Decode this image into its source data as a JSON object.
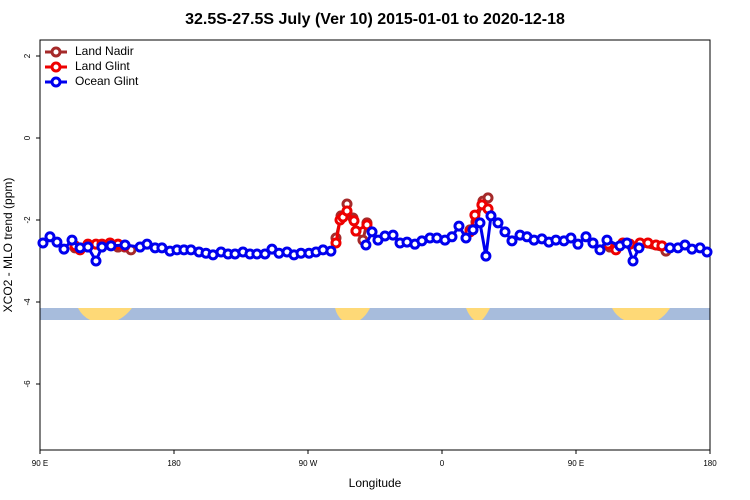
{
  "chart_data": {
    "type": "line",
    "title": "32.5S-27.5S July (Ver 10)   2015-01-01 to 2020-12-18",
    "xlabel": "Longitude",
    "ylabel": "XCO2 - MLO trend (ppm)",
    "xlim": [
      90,
      540
    ],
    "ylim": [
      -7.61,
      2.39
    ],
    "xticks": [
      {
        "value": 90,
        "label": "90 E"
      },
      180,
      {
        "value": 270,
        "label": "90 W"
      },
      {
        "value": 360,
        "label": "0"
      },
      {
        "value": 450,
        "label": "90 E"
      },
      {
        "value": 540,
        "label": "180"
      }
    ],
    "yticks": [
      2,
      0,
      -2,
      -4,
      -6
    ],
    "legend": "top-left",
    "series": [
      {
        "name": "Land Nadir",
        "color": "#a52a2a",
        "x": [
          113.5,
          122.2,
          137.0,
          142.4,
          147.1,
          151.1,
          null,
          288.8,
          292.2,
          296.2,
          300.2,
          302.2,
          306.9,
          309.6,
          null,
          378.8,
          382.8,
          387.5,
          390.9,
          null,
          472.8,
          493.0,
          510.4
        ],
        "values": [
          -2.68,
          -2.63,
          -2.61,
          -2.66,
          -2.66,
          -2.73,
          null,
          -2.44,
          -1.9,
          -1.61,
          -1.95,
          -2.27,
          -2.49,
          -2.07,
          null,
          -2.24,
          -2.05,
          -1.54,
          -1.46,
          null,
          -2.66,
          -2.61,
          -2.76
        ]
      },
      {
        "name": "Land Glint",
        "color": "#ee0000",
        "x": [
          113.5,
          116.9,
          122.2,
          127.6,
          131.6,
          137.0,
          142.4,
          147.1,
          null,
          288.8,
          291.5,
          293.5,
          296.2,
          300.9,
          302.2,
          309.6,
          null,
          378.8,
          382.1,
          386.8,
          390.9,
          null,
          471.5,
          476.8,
          481.5,
          486.2,
          493.0,
          498.3,
          503.7,
          507.7
        ],
        "values": [
          -2.63,
          -2.73,
          -2.59,
          -2.59,
          -2.59,
          -2.56,
          -2.59,
          -2.63,
          null,
          -2.56,
          -2.0,
          -1.93,
          -1.78,
          -2.02,
          -2.27,
          -2.12,
          null,
          -2.29,
          -1.88,
          -1.63,
          -1.73,
          null,
          -2.59,
          -2.73,
          -2.56,
          -2.59,
          -2.56,
          -2.56,
          -2.61,
          -2.63
        ]
      },
      {
        "name": "Ocean Glint",
        "color": "#0000ee",
        "x": [
          92.0,
          96.7,
          101.4,
          106.1,
          111.5,
          116.9,
          122.2,
          127.6,
          131.6,
          137.7,
          147.1,
          157.2,
          161.9,
          167.3,
          171.9,
          177.3,
          182.0,
          186.7,
          191.4,
          196.8,
          201.5,
          206.2,
          211.6,
          216.3,
          221.0,
          226.3,
          231.0,
          235.7,
          241.1,
          245.8,
          250.5,
          255.9,
          260.6,
          265.3,
          270.7,
          275.4,
          280.1,
          285.4,
          null,
          308.9,
          313.0,
          317.0,
          321.7,
          327.1,
          331.8,
          336.5,
          341.8,
          346.5,
          351.9,
          356.6,
          362.0,
          366.7,
          371.4,
          376.1,
          380.8,
          385.5,
          389.5,
          392.9,
          397.6,
          402.3,
          407.0,
          412.4,
          417.1,
          421.8,
          427.1,
          431.8,
          436.5,
          441.9,
          446.6,
          451.3,
          456.7,
          461.4,
          466.1,
          470.8,
          479.5,
          484.2,
          488.3,
          492.3,
          null,
          513.1,
          518.5,
          523.2,
          527.9,
          533.3,
          538.0
        ],
        "values": [
          -2.56,
          -2.41,
          -2.54,
          -2.71,
          -2.49,
          -2.68,
          -2.66,
          -3.0,
          -2.66,
          -2.63,
          -2.61,
          -2.66,
          -2.59,
          -2.68,
          -2.68,
          -2.76,
          -2.73,
          -2.73,
          -2.73,
          -2.78,
          -2.81,
          -2.85,
          -2.78,
          -2.83,
          -2.83,
          -2.78,
          -2.83,
          -2.83,
          -2.83,
          -2.71,
          -2.81,
          -2.78,
          -2.85,
          -2.81,
          -2.81,
          -2.78,
          -2.73,
          -2.76,
          null,
          -2.61,
          -2.29,
          -2.49,
          -2.39,
          -2.37,
          -2.56,
          -2.54,
          -2.59,
          -2.51,
          -2.44,
          -2.44,
          -2.49,
          -2.41,
          -2.15,
          -2.44,
          -2.24,
          -2.07,
          -2.88,
          -1.9,
          -2.07,
          -2.29,
          -2.51,
          -2.37,
          -2.41,
          -2.49,
          -2.46,
          -2.54,
          -2.49,
          -2.51,
          -2.44,
          -2.59,
          -2.41,
          -2.56,
          -2.73,
          -2.49,
          -2.63,
          -2.56,
          -3.0,
          -2.68,
          null,
          -2.68,
          -2.68,
          -2.61,
          -2.71,
          -2.68,
          -2.78
        ]
      }
    ]
  }
}
